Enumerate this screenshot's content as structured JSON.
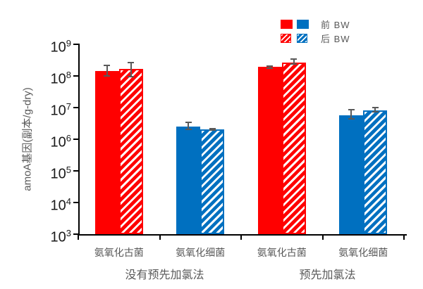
{
  "colors": {
    "archaea_red": "#ff0000",
    "bacteria_blue": "#0070c0",
    "error_bar": "#595959",
    "axis": "#000000",
    "tick_label": "#1a1a1a",
    "text_gray": "#595959"
  },
  "chart_data": {
    "type": "bar",
    "title": "",
    "ylabel": "amoA基因(副本/g-dry)",
    "xlabel": "",
    "y_scale": "log",
    "ylim": [
      1000,
      1000000000
    ],
    "y_tick_exponents": [
      9,
      8,
      7,
      6,
      5,
      4,
      3
    ],
    "grid": false,
    "legend_position": "top-right",
    "legend": [
      {
        "label": "前 BW",
        "style": "solid"
      },
      {
        "label": "后 BW",
        "style": "hatched"
      }
    ],
    "groups": [
      {
        "label": "没有预先加氯法",
        "categories": [
          {
            "label": "氨氧化古菌",
            "color": "#ff0000",
            "bars": [
              {
                "series": "前 BW",
                "fill": "solid",
                "value": 140000000.0,
                "err_lo": 100000000.0,
                "err_hi": 220000000.0
              },
              {
                "series": "后 BW",
                "fill": "hatched",
                "value": 170000000.0,
                "err_lo": 95000000.0,
                "err_hi": 260000000.0
              }
            ]
          },
          {
            "label": "氨氧化细菌",
            "color": "#0070c0",
            "bars": [
              {
                "series": "前 BW",
                "fill": "solid",
                "value": 2500000.0,
                "err_lo": 2100000.0,
                "err_hi": 3400000.0
              },
              {
                "series": "后 BW",
                "fill": "hatched",
                "value": 2000000.0,
                "err_lo": 1900000.0,
                "err_hi": 2200000.0
              }
            ]
          }
        ]
      },
      {
        "label": "预先加氯法",
        "categories": [
          {
            "label": "氨氧化古菌",
            "color": "#ff0000",
            "bars": [
              {
                "series": "前 BW",
                "fill": "solid",
                "value": 190000000.0,
                "err_lo": 180000000.0,
                "err_hi": 210000000.0
              },
              {
                "series": "后 BW",
                "fill": "hatched",
                "value": 270000000.0,
                "err_lo": 240000000.0,
                "err_hi": 350000000.0
              }
            ]
          },
          {
            "label": "氨氧化细菌",
            "color": "#0070c0",
            "bars": [
              {
                "series": "前 BW",
                "fill": "solid",
                "value": 5700000.0,
                "err_lo": 4300000.0,
                "err_hi": 8500000.0
              },
              {
                "series": "后 BW",
                "fill": "hatched",
                "value": 8000000.0,
                "err_lo": 7500000.0,
                "err_hi": 10000000.0
              }
            ]
          }
        ]
      }
    ]
  }
}
